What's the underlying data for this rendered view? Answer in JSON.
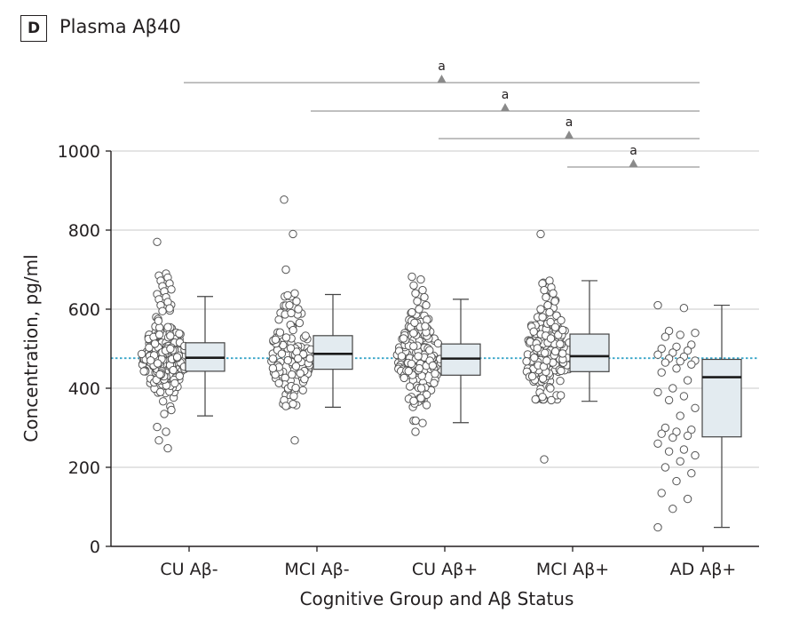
{
  "panel": {
    "letter": "D",
    "title": "Plasma Aβ40"
  },
  "colors": {
    "box_fill": "#e3ebf0",
    "grid": "#d3d3d3",
    "reference_line": "#3aa6c9",
    "axis": "#231f20",
    "marker": "#8a8a8a",
    "bracket": "#9a9a9a"
  },
  "chart_data": {
    "type": "box-and-scatter",
    "title": "Plasma Aβ40",
    "xlabel": "Cognitive Group and Aβ Status",
    "ylabel": "Concentration, pg/ml",
    "ylim": [
      0,
      1000
    ],
    "yticks": [
      0,
      200,
      400,
      600,
      800,
      1000
    ],
    "grid": true,
    "reference_line": 476,
    "categories": [
      "CU Aβ-",
      "MCI Aβ-",
      "CU Aβ+",
      "MCI Aβ+",
      "AD Aβ+"
    ],
    "boxes": [
      {
        "group": "CU Aβ-",
        "min": 330,
        "q1": 443,
        "median": 477,
        "q3": 515,
        "max": 632
      },
      {
        "group": "MCI Aβ-",
        "min": 352,
        "q1": 448,
        "median": 487,
        "q3": 533,
        "max": 637
      },
      {
        "group": "CU Aβ+",
        "min": 313,
        "q1": 433,
        "median": 475,
        "q3": 512,
        "max": 625
      },
      {
        "group": "MCI Aβ+",
        "min": 367,
        "q1": 442,
        "median": 481,
        "q3": 537,
        "max": 672
      },
      {
        "group": "AD Aβ+",
        "min": 48,
        "q1": 277,
        "median": 428,
        "q3": 473,
        "max": 610
      }
    ],
    "outliers": [
      {
        "group": "CU Aβ-",
        "values": [
          770,
          690,
          685,
          680,
          672,
          665,
          658,
          650,
          645,
          638,
          630,
          625,
          618,
          610,
          602,
          595,
          345,
          335,
          302,
          290,
          268,
          248
        ]
      },
      {
        "group": "MCI Aβ-",
        "values": [
          877,
          790,
          700,
          640,
          635,
          620,
          610,
          600,
          590,
          370,
          360,
          355,
          268
        ]
      },
      {
        "group": "CU Aβ+",
        "values": [
          682,
          675,
          660,
          648,
          640,
          630,
          620,
          610,
          600,
          592,
          375,
          368,
          312,
          290
        ]
      },
      {
        "group": "MCI Aβ+",
        "values": [
          790,
          672,
          665,
          655,
          648,
          640,
          630,
          620,
          610,
          600,
          592,
          378,
          370,
          220
        ]
      },
      {
        "group": "AD Aβ+",
        "values": [
          610,
          603,
          545,
          540,
          535,
          530,
          510,
          505,
          500,
          495,
          490,
          485,
          480,
          475,
          470,
          468,
          465,
          460,
          450,
          440,
          420,
          400,
          390,
          380,
          370,
          350,
          330,
          300,
          295,
          290,
          285,
          280,
          275,
          260,
          245,
          240,
          230,
          215,
          200,
          185,
          165,
          135,
          120,
          95,
          48
        ]
      }
    ],
    "significance": [
      {
        "label": "a",
        "from": "CU Aβ-",
        "to": "AD Aβ+"
      },
      {
        "label": "a",
        "from": "MCI Aβ-",
        "to": "AD Aβ+"
      },
      {
        "label": "a",
        "from": "CU Aβ+",
        "to": "AD Aβ+"
      },
      {
        "label": "a",
        "from": "MCI Aβ+",
        "to": "AD Aβ+"
      }
    ]
  }
}
